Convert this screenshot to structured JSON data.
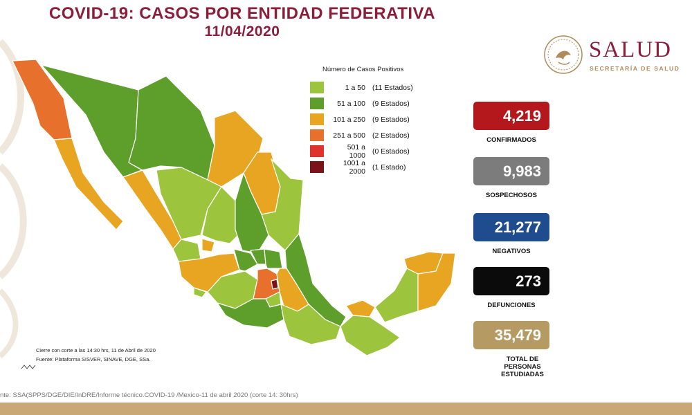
{
  "header": {
    "title": "COVID-19: CASOS POR ENTIDAD FEDERATIVA",
    "date": "11/04/2020"
  },
  "logo": {
    "name": "SALUD",
    "subtitle": "SECRETARÍA DE SALUD",
    "icon": "coat-of-arms-seal"
  },
  "legend": {
    "title": "Número de Casos Positivos",
    "items": [
      {
        "range": "1 a 50",
        "count": "(11 Estados)",
        "color": "#9cc43c"
      },
      {
        "range": "51 a 100",
        "count": "(9 Estados)",
        "color": "#5e9e2a"
      },
      {
        "range": "101 a 250",
        "count": "(9 Estados)",
        "color": "#e8a521"
      },
      {
        "range": "251 a 500",
        "count": "(2 Estados)",
        "color": "#e7702c"
      },
      {
        "range": "501 a 1000",
        "count": "(0 Estados)",
        "color": "#e0332b"
      },
      {
        "range": "1001 a 2000",
        "count": "(1 Estado)",
        "color": "#7a1419"
      }
    ]
  },
  "stats": [
    {
      "value": "4,219",
      "label": "CONFIRMADOS",
      "color": "#b5181c"
    },
    {
      "value": "9,983",
      "label": "SOSPECHOSOS",
      "color": "#7c7c7c"
    },
    {
      "value": "21,277",
      "label": "NEGATIVOS",
      "color": "#1f4c8f"
    },
    {
      "value": "273",
      "label": "DEFUNCIONES",
      "color": "#0b0b0b"
    },
    {
      "value": "35,479",
      "label": "TOTAL DE PERSONAS ESTUDIADAS",
      "color": "#b69a64"
    }
  ],
  "footnote": {
    "cutoff": "Cierre con corte a las 14:30 hrs, 11 de Abril de 2020",
    "source": "Fuente: Plataforma SISVER, SINAVE, DGE, SSa."
  },
  "source_line": "nte: SSA(SPPS/DGE/DIE/InDRE/Informe técnico.COVID-19 /Mexico-11 de abril 2020 (corte 14: 30hrs)",
  "colors": {
    "title": "#8a1d3a",
    "bottom_bar": "#c9a876"
  }
}
